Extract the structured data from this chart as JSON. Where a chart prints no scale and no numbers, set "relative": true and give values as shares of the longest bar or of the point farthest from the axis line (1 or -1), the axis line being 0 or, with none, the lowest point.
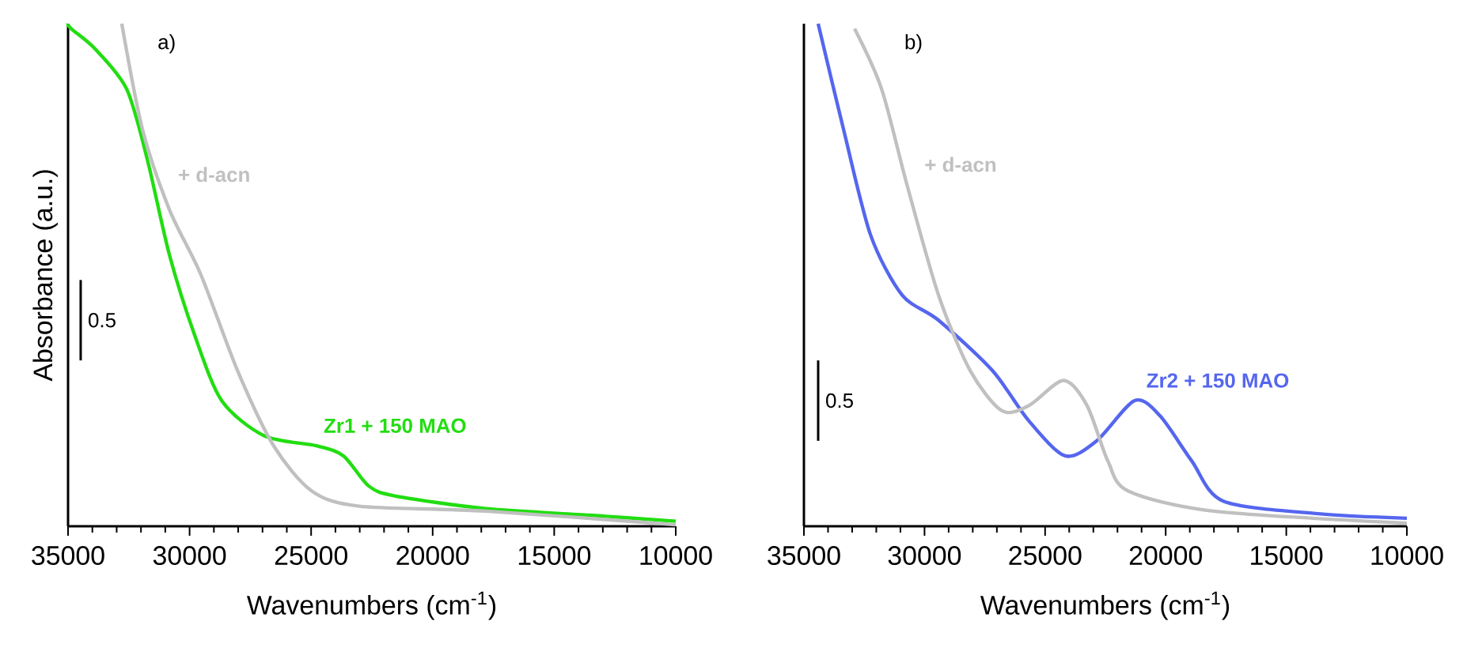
{
  "chart_data": [
    {
      "type": "line",
      "title": "a)",
      "xlabel": "Wavenumbers (cm$^{-1}$)",
      "ylabel": "Absorbance (a.u.)",
      "relative": true,
      "xlim": [
        35000,
        10000
      ],
      "xticks": [
        35000,
        30000,
        25000,
        20000,
        15000,
        10000
      ],
      "annotations": [
        "0.5"
      ],
      "series": [
        {
          "name": "Zr1 + 150 MAO",
          "color": "#22dd11",
          "x": [
            35000,
            34870,
            33890,
            32590,
            31740,
            30830,
            29790,
            28680,
            26930,
            24780,
            23670,
            22630,
            21520,
            17810,
            13520,
            10000
          ],
          "values": [
            1.0,
            0.99,
            0.95,
            0.87,
            0.73,
            0.54,
            0.38,
            0.25,
            0.18,
            0.16,
            0.14,
            0.08,
            0.06,
            0.035,
            0.022,
            0.01
          ]
        },
        {
          "name": "+ d-acn",
          "color": "#c0c0c0",
          "x": [
            32790,
            31940,
            30830,
            29530,
            28030,
            26540,
            24970,
            23020,
            17810,
            10000
          ],
          "values": [
            1.0,
            0.79,
            0.63,
            0.5,
            0.31,
            0.16,
            0.07,
            0.04,
            0.03,
            0.003
          ]
        }
      ]
    },
    {
      "type": "line",
      "title": "b)",
      "xlabel": "Wavenumbers (cm$^{-1}$)",
      "relative": true,
      "xlim": [
        35000,
        10000
      ],
      "xticks": [
        35000,
        30000,
        25000,
        20000,
        15000,
        10000
      ],
      "annotations": [
        "0.5"
      ],
      "series": [
        {
          "name": "Zr2 + 150 MAO",
          "color": "#5566ee",
          "x": [
            34410,
            33360,
            32240,
            30930,
            29420,
            27190,
            25680,
            24170,
            22860,
            21290,
            20240,
            18920,
            17610,
            13670,
            10000
          ],
          "values": [
            1.0,
            0.79,
            0.58,
            0.46,
            0.41,
            0.31,
            0.21,
            0.14,
            0.17,
            0.25,
            0.22,
            0.13,
            0.05,
            0.025,
            0.016
          ]
        },
        {
          "name": "+ d-acn",
          "color": "#c0c0c0",
          "x": [
            32900,
            31780,
            30730,
            29420,
            28110,
            26800,
            25680,
            24240,
            23260,
            22400,
            21550,
            18000,
            10000
          ],
          "values": [
            0.99,
            0.87,
            0.68,
            0.46,
            0.31,
            0.23,
            0.24,
            0.29,
            0.24,
            0.13,
            0.07,
            0.03,
            0.006
          ]
        }
      ]
    }
  ]
}
